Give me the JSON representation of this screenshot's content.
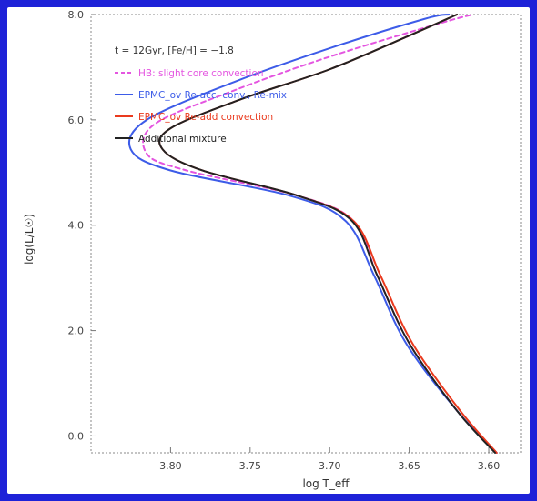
{
  "chart_data": {
    "type": "line",
    "title": "",
    "xlabel": "log T_eff",
    "ylabel": "log(L/L☉)",
    "xlim": [
      3.85,
      3.58
    ],
    "ylim": [
      11.0,
      0.6
    ],
    "x_reversed": true,
    "y_reversed": true,
    "x_ticks": [
      "3.80",
      "3.75",
      "3.70",
      "3.65",
      "3.60"
    ],
    "x_tick_values": [
      3.8,
      3.75,
      3.7,
      3.65,
      3.6
    ],
    "y_ticks": [
      "0.0",
      "2.0",
      "4.0",
      "6.0",
      "8.0"
    ],
    "y_tick_values": [
      1.0,
      3.5,
      6.0,
      8.5,
      11.0
    ],
    "legend_placement": "top-left",
    "annotation": "t = 12Gyr, [Fe/H] = −1.8",
    "series": [
      {
        "name": "HB: slight core convection",
        "color": "#e455e0",
        "dashed": true,
        "points": [
          [
            3.595,
            0.6
          ],
          [
            3.62,
            1.6
          ],
          [
            3.65,
            3.2
          ],
          [
            3.67,
            4.8
          ],
          [
            3.685,
            6.1
          ],
          [
            3.72,
            6.7
          ],
          [
            3.79,
            7.3
          ],
          [
            3.815,
            7.7
          ],
          [
            3.81,
            8.4
          ],
          [
            3.76,
            9.2
          ],
          [
            3.7,
            10.0
          ],
          [
            3.63,
            10.8
          ],
          [
            3.61,
            11.0
          ]
        ]
      },
      {
        "name": "EPMC_ov Re-acc. conv., Re-mix",
        "color": "#3d5ce8",
        "dashed": false,
        "points": [
          [
            3.595,
            0.6
          ],
          [
            3.62,
            1.6
          ],
          [
            3.652,
            3.2
          ],
          [
            3.672,
            4.8
          ],
          [
            3.69,
            6.1
          ],
          [
            3.725,
            6.7
          ],
          [
            3.8,
            7.3
          ],
          [
            3.825,
            7.8
          ],
          [
            3.815,
            8.5
          ],
          [
            3.76,
            9.4
          ],
          [
            3.7,
            10.2
          ],
          [
            3.64,
            10.9
          ],
          [
            3.625,
            11.0
          ]
        ]
      },
      {
        "name": "EPMC_ov Re-add convection",
        "color": "#ea3a1e",
        "dashed": false,
        "points": [
          [
            3.595,
            0.6
          ],
          [
            3.618,
            1.6
          ],
          [
            3.648,
            3.2
          ],
          [
            3.668,
            4.8
          ],
          [
            3.685,
            6.1
          ],
          [
            3.72,
            6.7
          ],
          [
            3.78,
            7.3
          ],
          [
            3.805,
            7.8
          ],
          [
            3.8,
            8.3
          ],
          [
            3.755,
            9.0
          ],
          [
            3.7,
            9.7
          ],
          [
            3.65,
            10.5
          ],
          [
            3.62,
            11.0
          ]
        ]
      },
      {
        "name": "Additional mixture",
        "color": "#222222",
        "dashed": false,
        "points": [
          [
            3.596,
            0.6
          ],
          [
            3.62,
            1.6
          ],
          [
            3.65,
            3.2
          ],
          [
            3.67,
            4.8
          ],
          [
            3.686,
            6.1
          ],
          [
            3.72,
            6.7
          ],
          [
            3.78,
            7.3
          ],
          [
            3.805,
            7.8
          ],
          [
            3.8,
            8.3
          ],
          [
            3.755,
            9.0
          ],
          [
            3.7,
            9.7
          ],
          [
            3.65,
            10.5
          ],
          [
            3.62,
            11.0
          ]
        ]
      }
    ]
  }
}
